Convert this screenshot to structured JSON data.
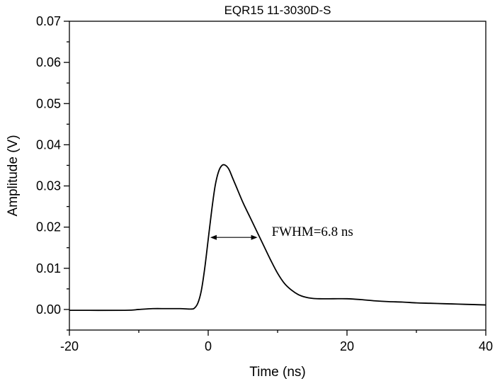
{
  "chart_data": {
    "type": "line",
    "title": "EQR15 11-3030D-S",
    "xlabel": "Time (ns)",
    "ylabel": "Amplitude (V)",
    "xlim": [
      -20,
      40
    ],
    "ylim": [
      -0.005,
      0.07
    ],
    "x_ticks": [
      -20,
      0,
      20,
      40
    ],
    "y_ticks": [
      0.0,
      0.01,
      0.02,
      0.03,
      0.04,
      0.05,
      0.06,
      0.07
    ],
    "x_tick_labels": [
      "-20",
      "0",
      "20",
      "40"
    ],
    "y_tick_labels": [
      "0.00",
      "0.01",
      "0.02",
      "0.03",
      "0.04",
      "0.05",
      "0.06",
      "0.07"
    ],
    "grid": false,
    "series": [
      {
        "x": [
          -20,
          -12,
          -10,
          -8,
          -6,
          -4,
          -2.5,
          -2,
          -1.5,
          -1,
          -0.5,
          0,
          0.5,
          1,
          1.5,
          2,
          2.5,
          3,
          3.5,
          4,
          5,
          6,
          7,
          8,
          9,
          10,
          11,
          12,
          13,
          14,
          15,
          16,
          18,
          20,
          22,
          24,
          26,
          28,
          30,
          32,
          34,
          36,
          38,
          40
        ],
        "y": [
          -0.0002,
          -0.0002,
          0.0,
          0.0002,
          0.0002,
          0.0002,
          0.0001,
          0.0003,
          0.0015,
          0.0045,
          0.01,
          0.017,
          0.024,
          0.03,
          0.0335,
          0.035,
          0.035,
          0.034,
          0.032,
          0.03,
          0.026,
          0.0225,
          0.019,
          0.0155,
          0.012,
          0.0088,
          0.0063,
          0.0047,
          0.0036,
          0.003,
          0.0027,
          0.0026,
          0.0026,
          0.0026,
          0.0024,
          0.0021,
          0.0019,
          0.0018,
          0.0016,
          0.0015,
          0.0014,
          0.0013,
          0.0012,
          0.0011
        ]
      }
    ],
    "annotations": [
      {
        "text": "FWHM=6.8 ns",
        "x_start": 0.3,
        "x_end": 7.1,
        "y": 0.0175
      }
    ]
  }
}
